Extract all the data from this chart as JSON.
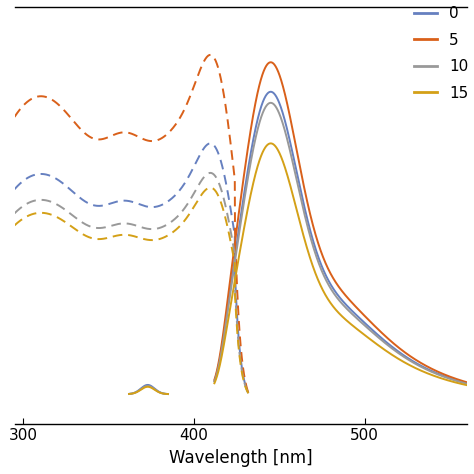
{
  "colors": {
    "0": "#6680c0",
    "5": "#d9601a",
    "10": "#999999",
    "15": "#d4a017"
  },
  "legend_labels": [
    "0",
    "5",
    "10",
    "15"
  ],
  "xlabel": "Wavelength [nm]",
  "xlim": [
    295,
    560
  ],
  "ylim": [
    -0.08,
    1.05
  ],
  "xticks": [
    300,
    400,
    500
  ],
  "background_color": "#ffffff",
  "linewidth": 1.4,
  "exc_scales": {
    "0": 0.68,
    "5": 0.92,
    "10": 0.6,
    "15": 0.56
  },
  "emi_scales": {
    "0": 0.82,
    "5": 0.9,
    "10": 0.79,
    "15": 0.68
  }
}
